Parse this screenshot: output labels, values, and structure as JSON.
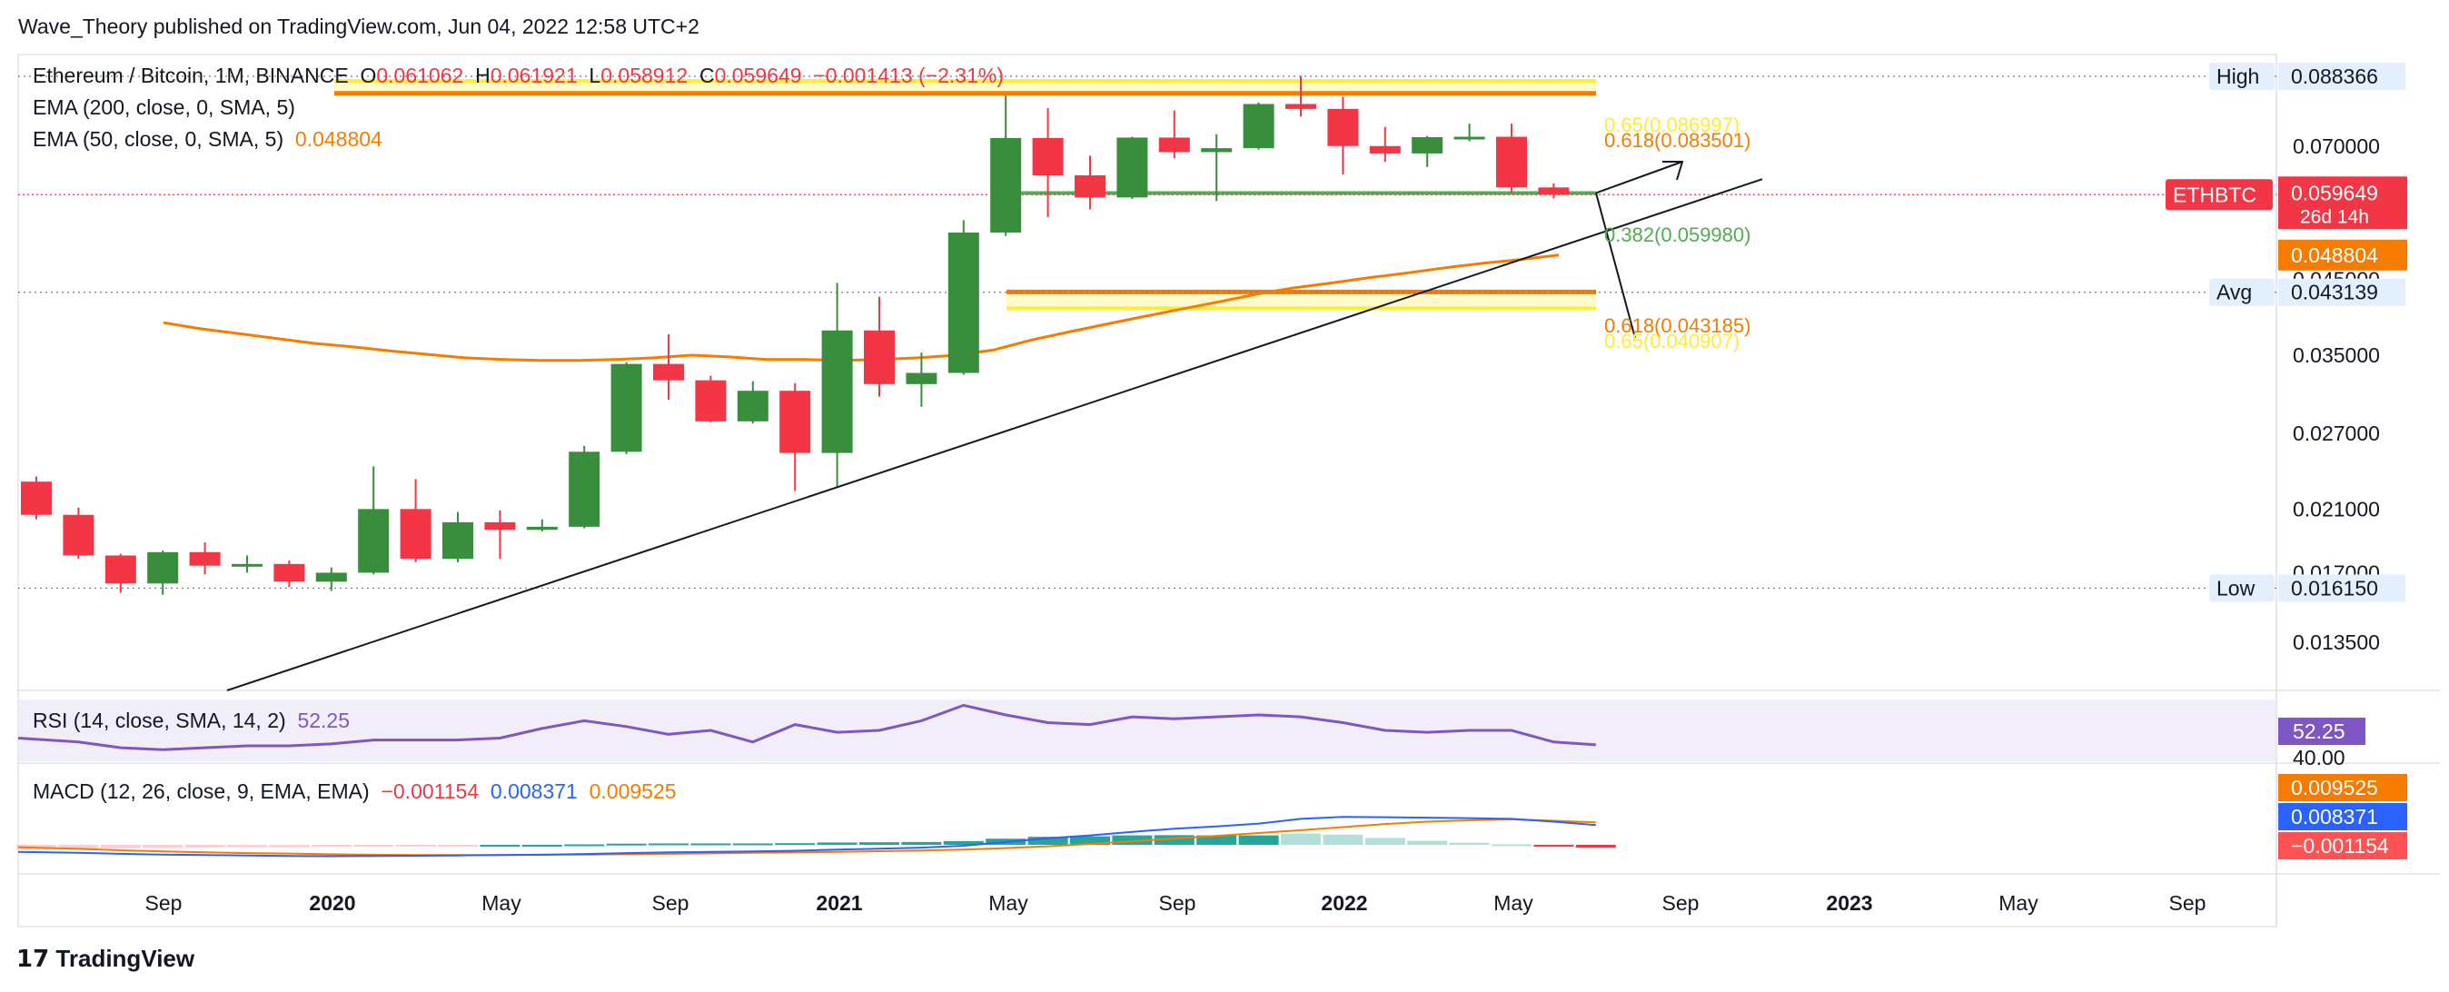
{
  "publisher": "Wave_Theory published on TradingView.com, Jun 04, 2022 12:58 UTC+2",
  "brand": "TradingView",
  "symbol": {
    "name": "Ethereum / Bitcoin, 1M, BINANCE",
    "o_label": "O",
    "o_val": "0.061062",
    "h_label": "H",
    "h_val": "0.061921",
    "l_label": "L",
    "l_val": "0.058912",
    "c_label": "C",
    "c_val": "0.059649",
    "change": "−0.001413 (−2.31%)"
  },
  "ema200": {
    "label": "EMA (200, close, 0, SMA, 5)"
  },
  "ema50": {
    "label": "EMA (50, close, 0, SMA, 5)",
    "value": "0.048804"
  },
  "rsi": {
    "label": "RSI (14, close, SMA, 14, 2)",
    "value": "52.25",
    "level": "40.00"
  },
  "macd": {
    "label": "MACD (12, 26, close, 9, EMA, EMA)",
    "hist": "−0.001154",
    "macd": "0.008371",
    "signal": "0.009525"
  },
  "colors": {
    "up": "#388e3c",
    "down": "#f23645",
    "ema": "#f57c00",
    "fib": "#ffeb3b",
    "rsi": "#7e57c2",
    "macd": "#2962ff"
  },
  "chart_data": {
    "type": "candlestick",
    "title": "Ethereum / Bitcoin, 1M, BINANCE",
    "axis_unit": "BTC",
    "y_scale": "log",
    "ylim": [
      0.0115,
      0.095
    ],
    "x_ticks": [
      "Sep",
      "2020",
      "May",
      "Sep",
      "2021",
      "May",
      "Sep",
      "2022",
      "May",
      "Sep",
      "2023",
      "May",
      "Sep"
    ],
    "x_ticks_bold": [
      "2020",
      "2021",
      "2022",
      "2023"
    ],
    "y_ticks": [
      "0.070000",
      "0.045000",
      "0.035000",
      "0.027000",
      "0.021000",
      "0.017000",
      "0.013500"
    ],
    "candles": [
      {
        "o": 0.023,
        "h": 0.0234,
        "l": 0.0203,
        "c": 0.0206
      },
      {
        "o": 0.0206,
        "h": 0.0211,
        "l": 0.0178,
        "c": 0.018
      },
      {
        "o": 0.018,
        "h": 0.0181,
        "l": 0.0159,
        "c": 0.0164
      },
      {
        "o": 0.0164,
        "h": 0.0183,
        "l": 0.0158,
        "c": 0.0182
      },
      {
        "o": 0.0182,
        "h": 0.0188,
        "l": 0.0169,
        "c": 0.0174
      },
      {
        "o": 0.0174,
        "h": 0.018,
        "l": 0.017,
        "c": 0.0175
      },
      {
        "o": 0.0175,
        "h": 0.0177,
        "l": 0.0162,
        "c": 0.0165
      },
      {
        "o": 0.0165,
        "h": 0.0173,
        "l": 0.016,
        "c": 0.017
      },
      {
        "o": 0.017,
        "h": 0.0242,
        "l": 0.0169,
        "c": 0.021
      },
      {
        "o": 0.021,
        "h": 0.0232,
        "l": 0.0176,
        "c": 0.0178
      },
      {
        "o": 0.0178,
        "h": 0.0208,
        "l": 0.0176,
        "c": 0.0201
      },
      {
        "o": 0.0201,
        "h": 0.0209,
        "l": 0.0178,
        "c": 0.0196
      },
      {
        "o": 0.0196,
        "h": 0.0203,
        "l": 0.0195,
        "c": 0.0198
      },
      {
        "o": 0.0198,
        "h": 0.0259,
        "l": 0.0197,
        "c": 0.0254
      },
      {
        "o": 0.0254,
        "h": 0.0342,
        "l": 0.0252,
        "c": 0.034
      },
      {
        "o": 0.034,
        "h": 0.0375,
        "l": 0.0302,
        "c": 0.0322
      },
      {
        "o": 0.0322,
        "h": 0.0327,
        "l": 0.028,
        "c": 0.0281
      },
      {
        "o": 0.0281,
        "h": 0.0321,
        "l": 0.0279,
        "c": 0.0311
      },
      {
        "o": 0.0311,
        "h": 0.0319,
        "l": 0.0223,
        "c": 0.0253
      },
      {
        "o": 0.0253,
        "h": 0.0445,
        "l": 0.0226,
        "c": 0.038
      },
      {
        "o": 0.038,
        "h": 0.0425,
        "l": 0.0305,
        "c": 0.0318
      },
      {
        "o": 0.0318,
        "h": 0.0353,
        "l": 0.0295,
        "c": 0.033
      },
      {
        "o": 0.033,
        "h": 0.0548,
        "l": 0.0328,
        "c": 0.0526
      },
      {
        "o": 0.0526,
        "h": 0.0829,
        "l": 0.052,
        "c": 0.072
      },
      {
        "o": 0.072,
        "h": 0.0795,
        "l": 0.0554,
        "c": 0.0636
      },
      {
        "o": 0.0636,
        "h": 0.0679,
        "l": 0.0568,
        "c": 0.0591
      },
      {
        "o": 0.0591,
        "h": 0.0723,
        "l": 0.0588,
        "c": 0.0721
      },
      {
        "o": 0.0721,
        "h": 0.0789,
        "l": 0.0673,
        "c": 0.0687
      },
      {
        "o": 0.0687,
        "h": 0.0729,
        "l": 0.0584,
        "c": 0.0696
      },
      {
        "o": 0.0696,
        "h": 0.081,
        "l": 0.0693,
        "c": 0.0806
      },
      {
        "o": 0.0806,
        "h": 0.0884,
        "l": 0.0773,
        "c": 0.0793
      },
      {
        "o": 0.0793,
        "h": 0.0826,
        "l": 0.0638,
        "c": 0.0701
      },
      {
        "o": 0.0701,
        "h": 0.0747,
        "l": 0.0665,
        "c": 0.0684
      },
      {
        "o": 0.0684,
        "h": 0.0725,
        "l": 0.0654,
        "c": 0.0722
      },
      {
        "o": 0.0722,
        "h": 0.0755,
        "l": 0.0712,
        "c": 0.0723
      },
      {
        "o": 0.0723,
        "h": 0.0755,
        "l": 0.06,
        "c": 0.0611
      },
      {
        "o": 0.0611,
        "h": 0.0619,
        "l": 0.0589,
        "c": 0.05965
      }
    ],
    "ema50_points": [
      0.039,
      0.0382,
      0.0376,
      0.037,
      0.0364,
      0.036,
      0.0355,
      0.0351,
      0.0347,
      0.0345,
      0.0344,
      0.0344,
      0.0345,
      0.0347,
      0.035,
      0.0348,
      0.0345,
      0.0345,
      0.0344,
      0.0345,
      0.0347,
      0.035,
      0.0356,
      0.0368,
      0.0378,
      0.0388,
      0.0398,
      0.0408,
      0.0418,
      0.0429,
      0.0438,
      0.0445,
      0.0453,
      0.046,
      0.0468,
      0.0475,
      0.0481,
      0.0488
    ],
    "horizontal_levels": [
      {
        "label": "High",
        "value": "0.088366"
      },
      {
        "label": "Avg",
        "value": "0.043139"
      },
      {
        "label": "Low",
        "value": "0.016150"
      }
    ],
    "fib_labels": [
      {
        "text": "0.65(0.086997)",
        "color": "#ffeb3b"
      },
      {
        "text": "0.618(0.083501)",
        "color": "#f57c00"
      },
      {
        "text": "0.382(0.059980)",
        "color": "#4caf50"
      },
      {
        "text": "0.618(0.043185)",
        "color": "#f57c00"
      },
      {
        "text": "0.65(0.040907)",
        "color": "#ffeb3b"
      }
    ],
    "last_price_tag": {
      "label": "ETHBTC",
      "value": "0.059649",
      "countdown": "26d 14h"
    },
    "rsi_values": [
      54,
      53,
      51.5,
      51,
      51.5,
      52,
      52,
      52.5,
      53.5,
      53.5,
      53.5,
      54,
      56.5,
      58.5,
      57,
      55,
      56,
      53,
      57.5,
      55.5,
      56,
      58.5,
      62.5,
      60,
      58,
      57.5,
      59.5,
      59,
      59.5,
      60,
      59.5,
      58,
      56,
      55.5,
      56,
      56,
      53,
      52.25
    ],
    "macd_line": [
      -0.003,
      -0.0034,
      -0.0038,
      -0.0041,
      -0.0043,
      -0.0045,
      -0.0047,
      -0.0048,
      -0.0047,
      -0.0046,
      -0.0045,
      -0.0043,
      -0.0042,
      -0.0039,
      -0.0035,
      -0.0032,
      -0.003,
      -0.0028,
      -0.0025,
      -0.002,
      -0.0016,
      -0.0012,
      -0.0004,
      0.0012,
      0.0028,
      0.004,
      0.0055,
      0.0068,
      0.0078,
      0.009,
      0.011,
      0.0118,
      0.0117,
      0.0115,
      0.0113,
      0.011,
      0.0098,
      0.008371
    ],
    "macd_signal": [
      -0.001,
      -0.0017,
      -0.0023,
      -0.0028,
      -0.0032,
      -0.0035,
      -0.0037,
      -0.004,
      -0.0042,
      -0.0043,
      -0.0043,
      -0.0043,
      -0.0042,
      -0.0041,
      -0.004,
      -0.0038,
      -0.0036,
      -0.0034,
      -0.0032,
      -0.003,
      -0.0027,
      -0.0024,
      -0.002,
      -0.0014,
      -0.0006,
      0.0004,
      0.0015,
      0.0027,
      0.0038,
      0.005,
      0.0062,
      0.0075,
      0.0088,
      0.0098,
      0.0104,
      0.0108,
      0.0102,
      0.009525
    ],
    "macd_hist": [
      -0.002,
      -0.0017,
      -0.0015,
      -0.0013,
      -0.0011,
      -0.001,
      -0.001,
      -0.0008,
      -0.0005,
      -0.0003,
      -0.0002,
      0.0,
      0.0,
      0.0002,
      0.0005,
      0.0006,
      0.0006,
      0.0006,
      0.0007,
      0.001,
      0.0011,
      0.0012,
      0.0016,
      0.0026,
      0.0034,
      0.0036,
      0.004,
      0.0041,
      0.004,
      0.004,
      0.0048,
      0.0043,
      0.0029,
      0.0017,
      0.0009,
      0.0002,
      -0.0004,
      -0.001154
    ]
  }
}
